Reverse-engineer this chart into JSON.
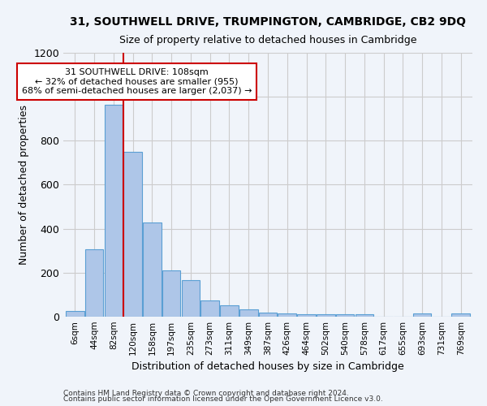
{
  "title1": "31, SOUTHWELL DRIVE, TRUMPINGTON, CAMBRIDGE, CB2 9DQ",
  "title2": "Size of property relative to detached houses in Cambridge",
  "xlabel": "Distribution of detached houses by size in Cambridge",
  "ylabel": "Number of detached properties",
  "footer1": "Contains HM Land Registry data © Crown copyright and database right 2024.",
  "footer2": "Contains public sector information licensed under the Open Government Licence v3.0.",
  "bar_labels": [
    "6sqm",
    "44sqm",
    "82sqm",
    "120sqm",
    "158sqm",
    "197sqm",
    "235sqm",
    "273sqm",
    "311sqm",
    "349sqm",
    "387sqm",
    "426sqm",
    "464sqm",
    "502sqm",
    "540sqm",
    "578sqm",
    "617sqm",
    "655sqm",
    "693sqm",
    "731sqm",
    "769sqm"
  ],
  "bar_values": [
    25,
    305,
    965,
    750,
    430,
    210,
    165,
    75,
    50,
    35,
    20,
    15,
    10,
    10,
    10,
    10,
    0,
    0,
    15,
    0,
    15
  ],
  "bar_color": "#aec6e8",
  "bar_edge_color": "#5a9fd4",
  "vline_color": "#cc0000",
  "annotation_text": "31 SOUTHWELL DRIVE: 108sqm\n← 32% of detached houses are smaller (955)\n68% of semi-detached houses are larger (2,037) →",
  "annotation_box_color": "#ffffff",
  "annotation_box_edge_color": "#cc0000",
  "ylim": [
    0,
    1200
  ],
  "yticks": [
    0,
    200,
    400,
    600,
    800,
    1000,
    1200
  ],
  "grid_color": "#cccccc",
  "bg_color": "#f0f4fa"
}
